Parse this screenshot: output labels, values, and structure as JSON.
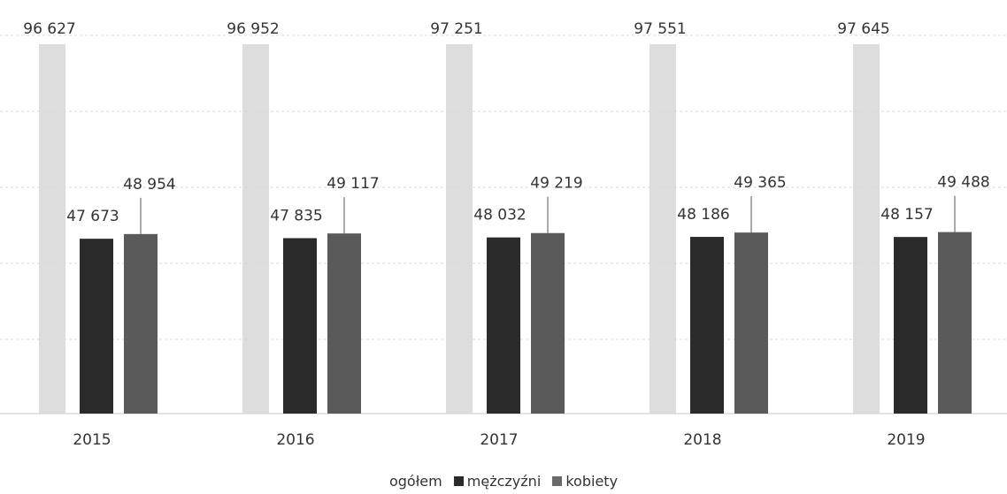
{
  "chart_data": {
    "type": "bar",
    "title": "",
    "xlabel": "",
    "ylabel": "",
    "categories": [
      "2015",
      "2016",
      "2017",
      "2018",
      "2019"
    ],
    "series": [
      {
        "name": "ogółem",
        "values": [
          96627,
          96952,
          97251,
          97551,
          97645
        ],
        "labels": [
          "96 627",
          "96 952",
          "97 251",
          "97 551",
          "97 645"
        ],
        "color": "#d7d7d7"
      },
      {
        "name": "mężczyźni",
        "values": [
          47673,
          47835,
          48032,
          48186,
          48157
        ],
        "labels": [
          "47 673",
          "47 835",
          "48 032",
          "48 186",
          "48 157"
        ],
        "color": "#2b2b2b"
      },
      {
        "name": "kobiety",
        "values": [
          48954,
          49117,
          49219,
          49365,
          49488
        ],
        "labels": [
          "48 954",
          "49 117",
          "49 219",
          "49 365",
          "49 488"
        ],
        "color": "#5a5a5a"
      }
    ],
    "ylim": [
      0,
      100000
    ],
    "grid": true,
    "legend_position": "bottom"
  },
  "legend": {
    "items": [
      {
        "label": "ogółem",
        "color": "#d7d7d7"
      },
      {
        "label": "mężczyźni",
        "color": "#2b2b2b"
      },
      {
        "label": "kobiety",
        "color": "#6a6a6a"
      }
    ]
  }
}
